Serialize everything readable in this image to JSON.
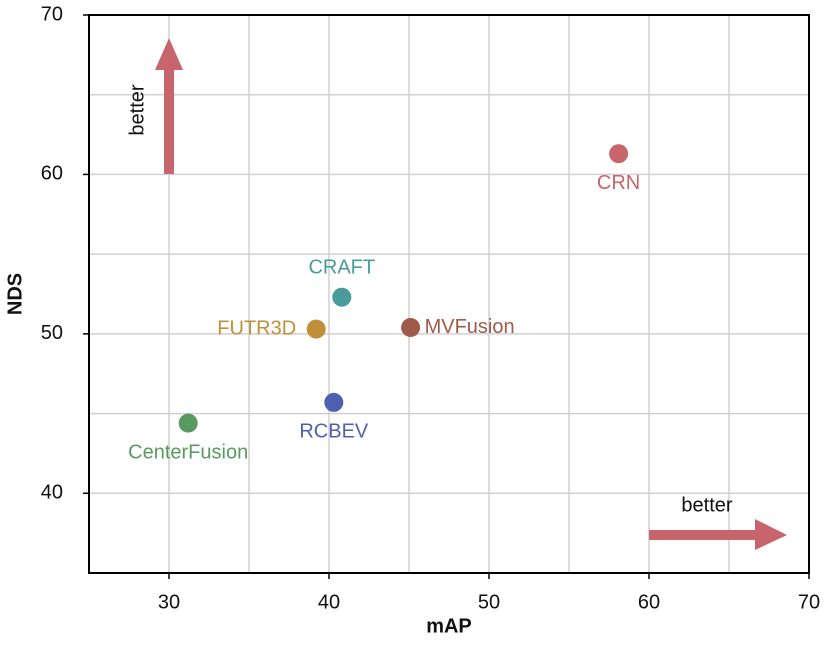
{
  "chart_data": {
    "type": "scatter",
    "xlabel": "mAP",
    "ylabel": "NDS",
    "xlim": [
      25,
      70
    ],
    "ylim": [
      35,
      70
    ],
    "xticks": [
      30,
      40,
      50,
      60,
      70
    ],
    "yticks": [
      40,
      50,
      60,
      70
    ],
    "x_minor_grid": [
      35,
      45,
      55,
      65
    ],
    "y_minor_grid": [
      45,
      55,
      65
    ],
    "grid": true,
    "annotations": [
      "better",
      "better"
    ],
    "points": [
      {
        "label": "CRN",
        "x": 58.1,
        "y": 61.3,
        "color": "#c8646c"
      },
      {
        "label": "CRAFT",
        "x": 40.8,
        "y": 52.3,
        "color": "#4a9c9c"
      },
      {
        "label": "FUTR3D",
        "x": 39.2,
        "y": 50.3,
        "color": "#c09038"
      },
      {
        "label": "MVFusion",
        "x": 45.1,
        "y": 50.4,
        "color": "#9e5a4a"
      },
      {
        "label": "RCBEV",
        "x": 40.3,
        "y": 45.7,
        "color": "#5060b0"
      },
      {
        "label": "CenterFusion",
        "x": 31.2,
        "y": 44.4,
        "color": "#5a9a60"
      }
    ]
  }
}
